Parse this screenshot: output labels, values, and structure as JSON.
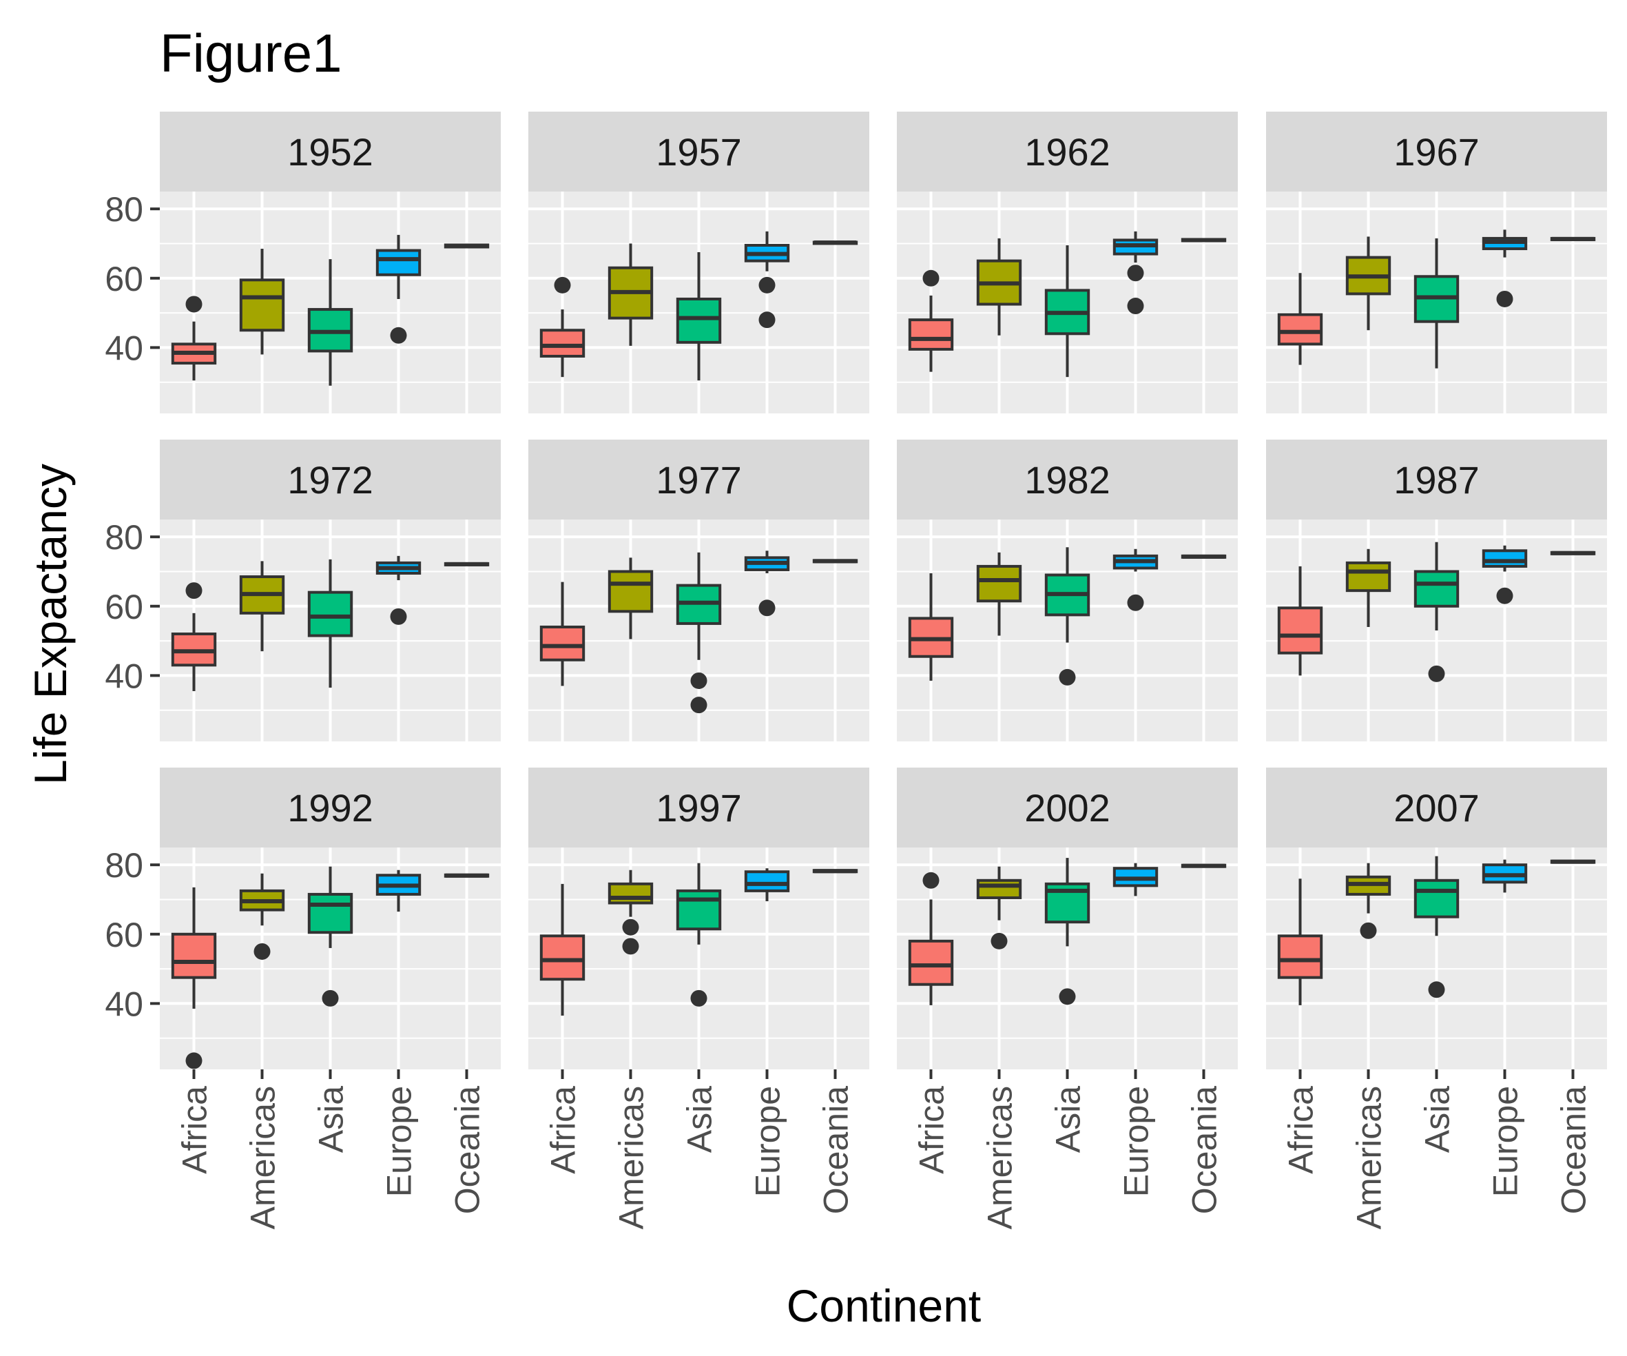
{
  "chart_data": {
    "type": "boxplot",
    "title": "Figure1",
    "xlabel": "Continent",
    "ylabel": "Life Expactancy",
    "categories": [
      "Africa",
      "Americas",
      "Asia",
      "Europe",
      "Oceania"
    ],
    "yticks": [
      40,
      60,
      80
    ],
    "ylim": [
      21,
      85
    ],
    "grid": true,
    "legend": "none",
    "colors": {
      "Africa": "#F8766D",
      "Americas": "#A3A500",
      "Asia": "#00BF7D",
      "Europe": "#00B0F6",
      "Oceania": "#E76BF3"
    },
    "panels": [
      {
        "year": "1952",
        "boxes": [
          {
            "q1": 35.5,
            "median": 38.5,
            "q3": 41.0,
            "lo": 30.5,
            "hi": 47.5,
            "outliers": [
              52.5
            ]
          },
          {
            "q1": 45.0,
            "median": 54.5,
            "q3": 59.5,
            "lo": 38.0,
            "hi": 68.5,
            "outliers": []
          },
          {
            "q1": 39.0,
            "median": 44.5,
            "q3": 51.0,
            "lo": 29.0,
            "hi": 65.5,
            "outliers": []
          },
          {
            "q1": 61.0,
            "median": 65.5,
            "q3": 68.0,
            "lo": 54.0,
            "hi": 72.5,
            "outliers": [
              43.5
            ]
          },
          {
            "q1": 69.0,
            "median": 69.3,
            "q3": 69.6,
            "lo": 69.0,
            "hi": 69.6,
            "outliers": []
          }
        ]
      },
      {
        "year": "1957",
        "boxes": [
          {
            "q1": 37.5,
            "median": 40.5,
            "q3": 45.0,
            "lo": 31.5,
            "hi": 51.0,
            "outliers": [
              58.0
            ]
          },
          {
            "q1": 48.5,
            "median": 56.0,
            "q3": 63.0,
            "lo": 40.5,
            "hi": 70.0,
            "outliers": []
          },
          {
            "q1": 41.5,
            "median": 48.5,
            "q3": 54.0,
            "lo": 30.5,
            "hi": 67.5,
            "outliers": []
          },
          {
            "q1": 65.0,
            "median": 67.0,
            "q3": 69.5,
            "lo": 62.0,
            "hi": 73.5,
            "outliers": [
              58.0,
              48.0
            ]
          },
          {
            "q1": 70.2,
            "median": 70.3,
            "q3": 70.4,
            "lo": 70.2,
            "hi": 70.4,
            "outliers": []
          }
        ]
      },
      {
        "year": "1962",
        "boxes": [
          {
            "q1": 39.5,
            "median": 42.5,
            "q3": 48.0,
            "lo": 33.0,
            "hi": 55.0,
            "outliers": [
              60.0
            ]
          },
          {
            "q1": 52.5,
            "median": 58.5,
            "q3": 65.0,
            "lo": 43.5,
            "hi": 71.5,
            "outliers": []
          },
          {
            "q1": 44.0,
            "median": 50.0,
            "q3": 56.5,
            "lo": 31.5,
            "hi": 69.5,
            "outliers": []
          },
          {
            "q1": 67.0,
            "median": 69.5,
            "q3": 71.0,
            "lo": 64.5,
            "hi": 73.5,
            "outliers": [
              61.5,
              52.0
            ]
          },
          {
            "q1": 70.8,
            "median": 71.0,
            "q3": 71.2,
            "lo": 70.8,
            "hi": 71.2,
            "outliers": []
          }
        ]
      },
      {
        "year": "1967",
        "boxes": [
          {
            "q1": 41.0,
            "median": 44.5,
            "q3": 49.5,
            "lo": 35.0,
            "hi": 61.5,
            "outliers": []
          },
          {
            "q1": 55.5,
            "median": 60.5,
            "q3": 66.0,
            "lo": 45.0,
            "hi": 72.0,
            "outliers": []
          },
          {
            "q1": 47.5,
            "median": 54.5,
            "q3": 60.5,
            "lo": 34.0,
            "hi": 71.5,
            "outliers": []
          },
          {
            "q1": 68.5,
            "median": 70.5,
            "q3": 71.5,
            "lo": 66.0,
            "hi": 74.0,
            "outliers": [
              54.0
            ]
          },
          {
            "q1": 71.1,
            "median": 71.3,
            "q3": 71.5,
            "lo": 71.1,
            "hi": 71.5,
            "outliers": []
          }
        ]
      },
      {
        "year": "1972",
        "boxes": [
          {
            "q1": 43.0,
            "median": 47.0,
            "q3": 52.0,
            "lo": 35.5,
            "hi": 58.0,
            "outliers": [
              64.5
            ]
          },
          {
            "q1": 58.0,
            "median": 63.5,
            "q3": 68.5,
            "lo": 47.0,
            "hi": 73.0,
            "outliers": []
          },
          {
            "q1": 51.5,
            "median": 57.0,
            "q3": 64.0,
            "lo": 36.5,
            "hi": 73.5,
            "outliers": []
          },
          {
            "q1": 69.5,
            "median": 71.0,
            "q3": 72.5,
            "lo": 67.5,
            "hi": 74.5,
            "outliers": [
              57.0
            ]
          },
          {
            "q1": 71.9,
            "median": 72.1,
            "q3": 72.3,
            "lo": 71.9,
            "hi": 72.3,
            "outliers": []
          }
        ]
      },
      {
        "year": "1977",
        "boxes": [
          {
            "q1": 44.5,
            "median": 48.5,
            "q3": 54.0,
            "lo": 37.0,
            "hi": 67.0,
            "outliers": []
          },
          {
            "q1": 58.5,
            "median": 66.5,
            "q3": 70.0,
            "lo": 50.5,
            "hi": 74.0,
            "outliers": []
          },
          {
            "q1": 55.0,
            "median": 61.0,
            "q3": 66.0,
            "lo": 44.5,
            "hi": 75.5,
            "outliers": [
              38.5,
              31.5
            ]
          },
          {
            "q1": 70.5,
            "median": 72.5,
            "q3": 74.0,
            "lo": 69.5,
            "hi": 76.0,
            "outliers": [
              59.5
            ]
          },
          {
            "q1": 72.8,
            "median": 73.0,
            "q3": 73.2,
            "lo": 72.8,
            "hi": 73.2,
            "outliers": []
          }
        ]
      },
      {
        "year": "1982",
        "boxes": [
          {
            "q1": 45.5,
            "median": 50.5,
            "q3": 56.5,
            "lo": 38.5,
            "hi": 69.5,
            "outliers": []
          },
          {
            "q1": 61.5,
            "median": 67.5,
            "q3": 71.5,
            "lo": 51.5,
            "hi": 75.5,
            "outliers": []
          },
          {
            "q1": 57.5,
            "median": 63.5,
            "q3": 69.0,
            "lo": 49.5,
            "hi": 77.0,
            "outliers": [
              39.5
            ]
          },
          {
            "q1": 71.0,
            "median": 73.0,
            "q3": 74.5,
            "lo": 70.0,
            "hi": 76.5,
            "outliers": [
              61.0
            ]
          },
          {
            "q1": 74.1,
            "median": 74.3,
            "q3": 74.5,
            "lo": 74.1,
            "hi": 74.5,
            "outliers": []
          }
        ]
      },
      {
        "year": "1987",
        "boxes": [
          {
            "q1": 46.5,
            "median": 51.5,
            "q3": 59.5,
            "lo": 40.0,
            "hi": 71.5,
            "outliers": []
          },
          {
            "q1": 64.5,
            "median": 70.0,
            "q3": 72.5,
            "lo": 54.0,
            "hi": 76.5,
            "outliers": []
          },
          {
            "q1": 60.0,
            "median": 66.5,
            "q3": 70.0,
            "lo": 53.0,
            "hi": 78.5,
            "outliers": [
              40.5
            ]
          },
          {
            "q1": 71.5,
            "median": 73.0,
            "q3": 76.0,
            "lo": 70.0,
            "hi": 77.5,
            "outliers": [
              63.0
            ]
          },
          {
            "q1": 75.1,
            "median": 75.3,
            "q3": 75.5,
            "lo": 75.1,
            "hi": 75.5,
            "outliers": []
          }
        ]
      },
      {
        "year": "1992",
        "boxes": [
          {
            "q1": 47.5,
            "median": 52.0,
            "q3": 60.0,
            "lo": 38.5,
            "hi": 73.5,
            "outliers": [
              23.5
            ]
          },
          {
            "q1": 67.0,
            "median": 69.5,
            "q3": 72.5,
            "lo": 62.5,
            "hi": 77.5,
            "outliers": [
              55.0
            ]
          },
          {
            "q1": 60.5,
            "median": 68.5,
            "q3": 71.5,
            "lo": 56.0,
            "hi": 79.5,
            "outliers": [
              41.5
            ]
          },
          {
            "q1": 71.5,
            "median": 74.0,
            "q3": 77.0,
            "lo": 66.5,
            "hi": 78.5,
            "outliers": []
          },
          {
            "q1": 76.7,
            "median": 76.9,
            "q3": 77.1,
            "lo": 76.7,
            "hi": 77.1,
            "outliers": []
          }
        ]
      },
      {
        "year": "1997",
        "boxes": [
          {
            "q1": 47.0,
            "median": 52.5,
            "q3": 59.5,
            "lo": 36.5,
            "hi": 74.5,
            "outliers": []
          },
          {
            "q1": 69.0,
            "median": 70.5,
            "q3": 74.5,
            "lo": 65.0,
            "hi": 78.5,
            "outliers": [
              62.0,
              56.5
            ]
          },
          {
            "q1": 61.5,
            "median": 70.0,
            "q3": 72.5,
            "lo": 57.0,
            "hi": 80.5,
            "outliers": [
              41.5
            ]
          },
          {
            "q1": 72.5,
            "median": 74.5,
            "q3": 78.0,
            "lo": 69.5,
            "hi": 79.0,
            "outliers": []
          },
          {
            "q1": 78.0,
            "median": 78.2,
            "q3": 78.4,
            "lo": 78.0,
            "hi": 78.4,
            "outliers": []
          }
        ]
      },
      {
        "year": "2002",
        "boxes": [
          {
            "q1": 45.5,
            "median": 51.0,
            "q3": 58.0,
            "lo": 39.5,
            "hi": 70.0,
            "outliers": [
              75.5
            ]
          },
          {
            "q1": 70.5,
            "median": 74.0,
            "q3": 75.5,
            "lo": 64.0,
            "hi": 79.5,
            "outliers": [
              58.0
            ]
          },
          {
            "q1": 63.5,
            "median": 72.5,
            "q3": 74.5,
            "lo": 56.5,
            "hi": 82.0,
            "outliers": [
              42.0
            ]
          },
          {
            "q1": 74.0,
            "median": 76.0,
            "q3": 79.0,
            "lo": 71.0,
            "hi": 80.5,
            "outliers": []
          },
          {
            "q1": 79.5,
            "median": 79.7,
            "q3": 79.9,
            "lo": 79.5,
            "hi": 79.9,
            "outliers": []
          }
        ]
      },
      {
        "year": "2007",
        "boxes": [
          {
            "q1": 47.5,
            "median": 52.5,
            "q3": 59.5,
            "lo": 39.5,
            "hi": 76.0,
            "outliers": []
          },
          {
            "q1": 71.5,
            "median": 74.5,
            "q3": 76.5,
            "lo": 66.0,
            "hi": 80.5,
            "outliers": [
              61.0
            ]
          },
          {
            "q1": 65.0,
            "median": 72.5,
            "q3": 75.5,
            "lo": 59.5,
            "hi": 82.5,
            "outliers": [
              44.0
            ]
          },
          {
            "q1": 75.0,
            "median": 77.0,
            "q3": 80.0,
            "lo": 72.0,
            "hi": 81.5,
            "outliers": []
          },
          {
            "q1": 80.7,
            "median": 80.9,
            "q3": 81.1,
            "lo": 80.7,
            "hi": 81.1,
            "outliers": []
          }
        ]
      }
    ]
  }
}
